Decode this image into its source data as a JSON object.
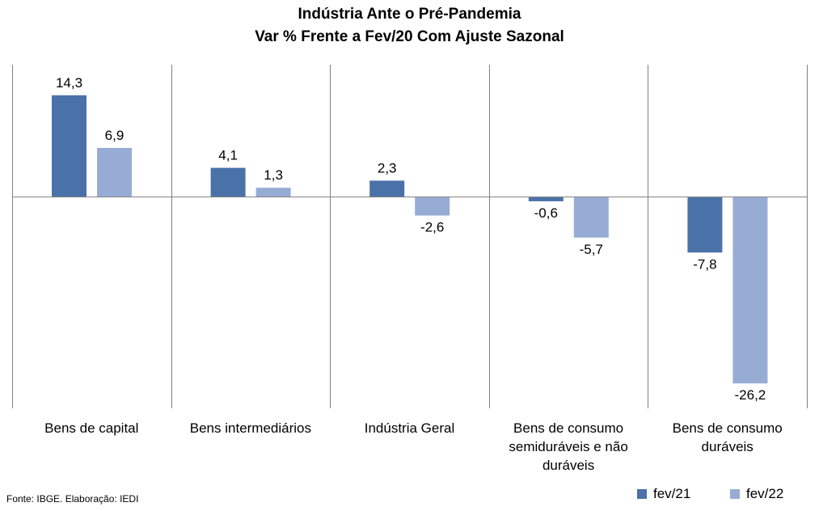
{
  "chart_data": {
    "type": "bar",
    "title": "Indústria Ante o Pré-Pandemia",
    "subtitle": "Var % Frente a Fev/20 Com Ajuste Sazonal",
    "categories": [
      "Bens de capital",
      "Bens intermediários",
      "Indústria Geral",
      "Bens de consumo semiduráveis e não duráveis",
      "Bens de consumo duráveis"
    ],
    "category_lines": [
      [
        "Bens de capital"
      ],
      [
        "Bens intermediários"
      ],
      [
        "Indústria Geral"
      ],
      [
        "Bens de consumo",
        "semiduráveis e não",
        "duráveis"
      ],
      [
        "Bens de consumo",
        "duráveis"
      ]
    ],
    "series": [
      {
        "name": "fev/21",
        "color": "#4A72A8",
        "values": [
          14.3,
          4.1,
          2.3,
          -0.6,
          -7.8
        ],
        "labels": [
          "14,3",
          "4,1",
          "2,3",
          "-0,6",
          "-7,8"
        ]
      },
      {
        "name": "fev/22",
        "color": "#97ACD4",
        "values": [
          6.9,
          1.3,
          -2.6,
          -5.7,
          -26.2
        ],
        "labels": [
          "6,9",
          "1,3",
          "-2,6",
          "-5,7",
          "-26,2"
        ]
      }
    ],
    "ylim": [
      -29.7,
      18.6
    ],
    "grid": false,
    "legend_position": "bottom-right",
    "source": "Fonte: IBGE. Elaboração: IEDI"
  }
}
